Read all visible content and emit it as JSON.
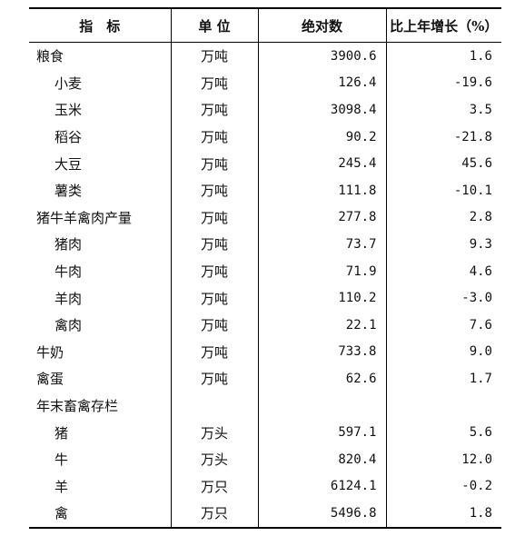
{
  "table": {
    "headers": [
      "指　标",
      "单 位",
      "绝对数",
      "比上年增长（%）"
    ],
    "rows": [
      {
        "name": "粮食",
        "indent": false,
        "unit": "万吨",
        "value": "3900.6",
        "growth": "1.6"
      },
      {
        "name": "小麦",
        "indent": true,
        "unit": "万吨",
        "value": "126.4",
        "growth": "-19.6"
      },
      {
        "name": "玉米",
        "indent": true,
        "unit": "万吨",
        "value": "3098.4",
        "growth": "3.5"
      },
      {
        "name": "稻谷",
        "indent": true,
        "unit": "万吨",
        "value": "90.2",
        "growth": "-21.8"
      },
      {
        "name": "大豆",
        "indent": true,
        "unit": "万吨",
        "value": "245.4",
        "growth": "45.6"
      },
      {
        "name": "薯类",
        "indent": true,
        "unit": "万吨",
        "value": "111.8",
        "growth": "-10.1"
      },
      {
        "name": "猪牛羊禽肉产量",
        "indent": false,
        "unit": "万吨",
        "value": "277.8",
        "growth": "2.8"
      },
      {
        "name": "猪肉",
        "indent": true,
        "unit": "万吨",
        "value": "73.7",
        "growth": "9.3"
      },
      {
        "name": "牛肉",
        "indent": true,
        "unit": "万吨",
        "value": "71.9",
        "growth": "4.6"
      },
      {
        "name": "羊肉",
        "indent": true,
        "unit": "万吨",
        "value": "110.2",
        "growth": "-3.0"
      },
      {
        "name": "禽肉",
        "indent": true,
        "unit": "万吨",
        "value": "22.1",
        "growth": "7.6"
      },
      {
        "name": "牛奶",
        "indent": false,
        "unit": "万吨",
        "value": "733.8",
        "growth": "9.0"
      },
      {
        "name": "禽蛋",
        "indent": false,
        "unit": "万吨",
        "value": "62.6",
        "growth": "1.7"
      },
      {
        "name": "年末畜禽存栏",
        "indent": false,
        "unit": "",
        "value": "",
        "growth": ""
      },
      {
        "name": "猪",
        "indent": true,
        "unit": "万头",
        "value": "597.1",
        "growth": "5.6"
      },
      {
        "name": "牛",
        "indent": true,
        "unit": "万头",
        "value": "820.4",
        "growth": "12.0"
      },
      {
        "name": "羊",
        "indent": true,
        "unit": "万只",
        "value": "6124.1",
        "growth": "-0.2"
      },
      {
        "name": "禽",
        "indent": true,
        "unit": "万只",
        "value": "5496.8",
        "growth": "1.8"
      }
    ]
  }
}
